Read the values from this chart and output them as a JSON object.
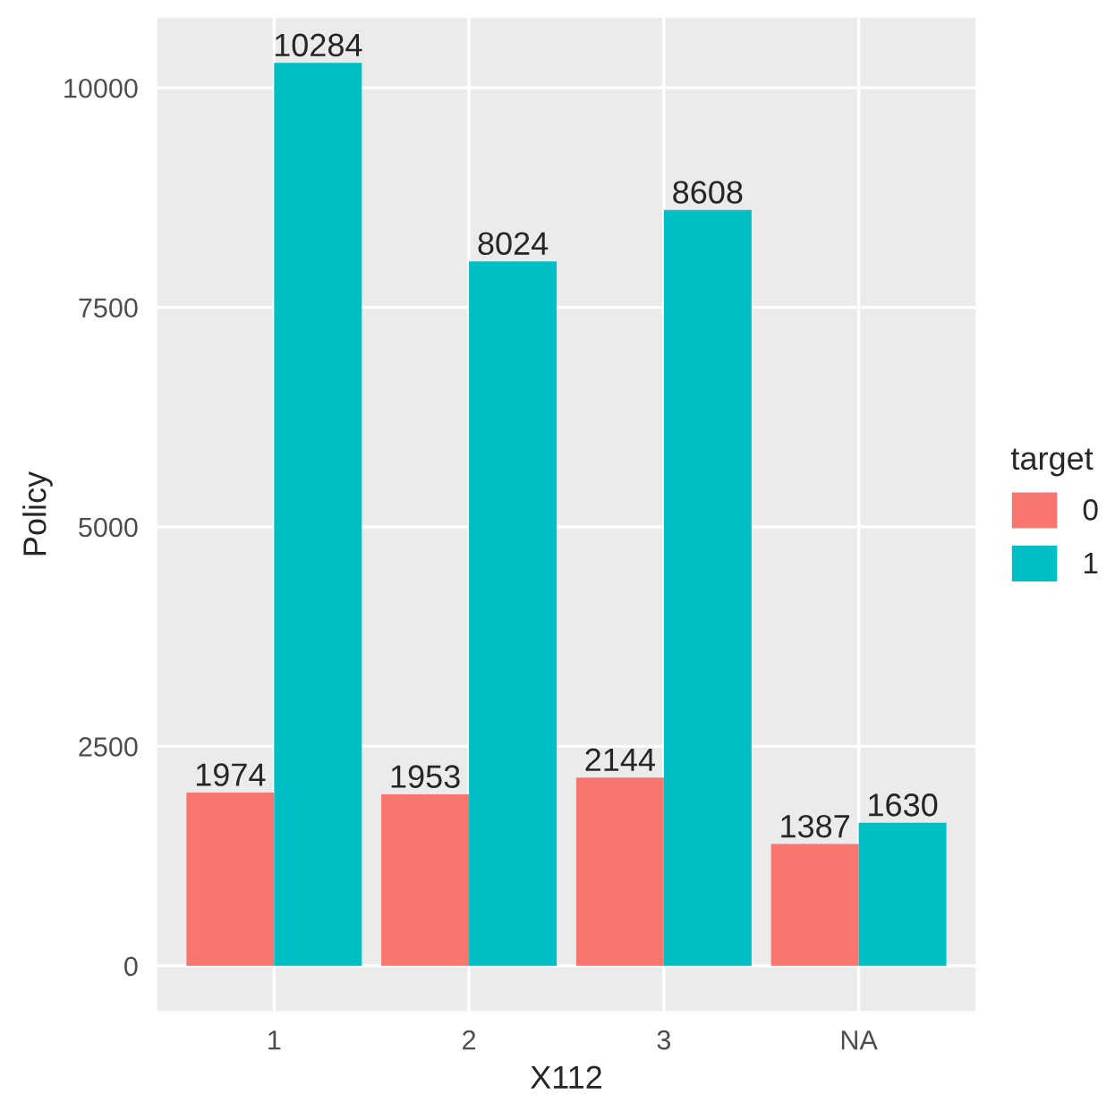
{
  "chart_data": {
    "type": "bar",
    "xlabel": "X112",
    "ylabel": "Policy",
    "legend_title": "target",
    "categories": [
      "1",
      "2",
      "3",
      "NA"
    ],
    "series": [
      {
        "name": "0",
        "color": "#f8766d",
        "values": [
          1974,
          1953,
          2144,
          1387
        ]
      },
      {
        "name": "1",
        "color": "#00bfc4",
        "values": [
          10284,
          8024,
          8608,
          1630
        ]
      }
    ],
    "ylim": [
      -514,
      10798
    ],
    "yticks": [
      0,
      2500,
      5000,
      7500,
      10000
    ],
    "grid": true,
    "legend": "right",
    "data_labels": true
  }
}
